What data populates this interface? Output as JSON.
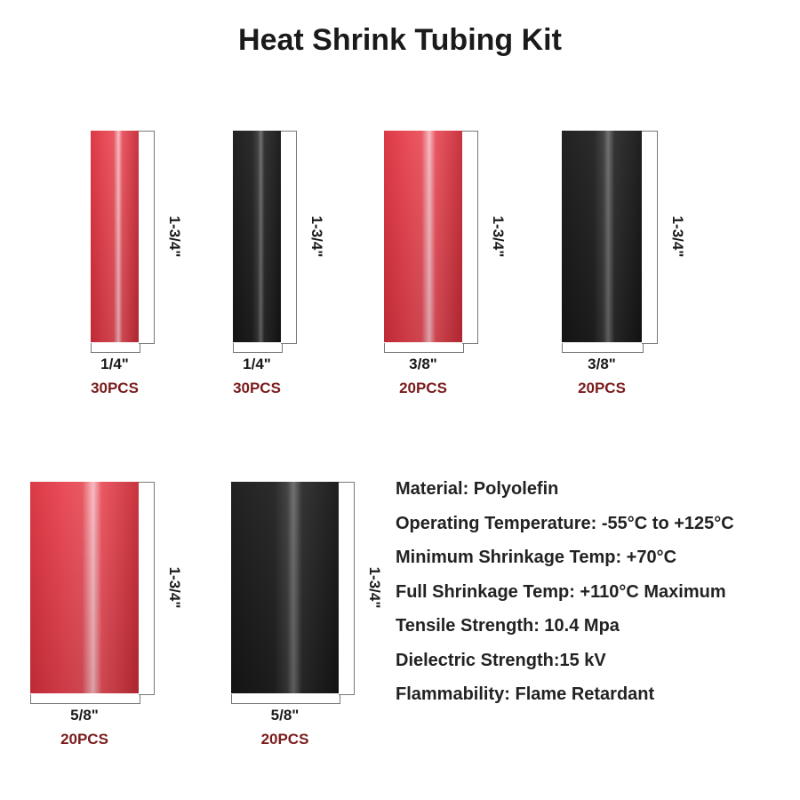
{
  "title": "Heat Shrink Tubing Kit",
  "colors": {
    "red": "#e8434f",
    "black": "#1c1c1c",
    "pcs_text": "#7a1c1c"
  },
  "tubes": [
    {
      "color": "red",
      "diameter": "1/4\"",
      "length": "1-3/4\"",
      "quantity": "30PCS"
    },
    {
      "color": "black",
      "diameter": "1/4\"",
      "length": "1-3/4\"",
      "quantity": "30PCS"
    },
    {
      "color": "red",
      "diameter": "3/8\"",
      "length": "1-3/4\"",
      "quantity": "20PCS"
    },
    {
      "color": "black",
      "diameter": "3/8\"",
      "length": "1-3/4\"",
      "quantity": "20PCS"
    },
    {
      "color": "red",
      "diameter": "5/8\"",
      "length": "1-3/4\"",
      "quantity": "20PCS"
    },
    {
      "color": "black",
      "diameter": "5/8\"",
      "length": "1-3/4\"",
      "quantity": "20PCS"
    }
  ],
  "specs": [
    "Material: Polyolefin",
    "Operating Temperature: -55°C to +125°C",
    "Minimum Shrinkage Temp: +70°C",
    "Full Shrinkage Temp: +110°C Maximum",
    "Tensile Strength: 10.4 Mpa",
    "Dielectric Strength:15 kV",
    "Flammability: Flame Retardant"
  ]
}
